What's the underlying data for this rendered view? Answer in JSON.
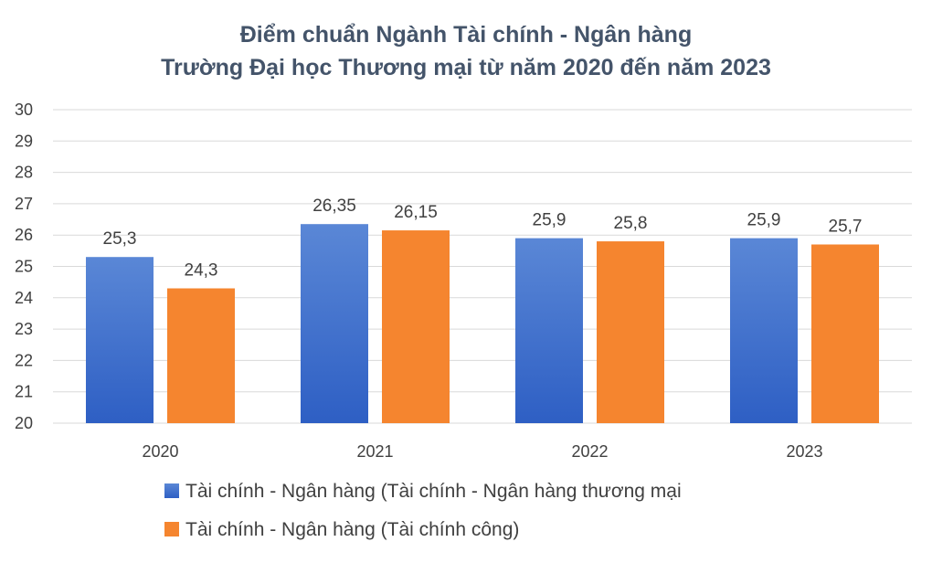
{
  "chart_data": {
    "type": "bar",
    "title_lines": [
      "Điểm chuẩn Ngành Tài chính - Ngân hàng",
      "Trường Đại học Thương mại từ năm 2020 đến năm 2023"
    ],
    "categories": [
      "2020",
      "2021",
      "2022",
      "2023"
    ],
    "series": [
      {
        "name": "Tài chính - Ngân hàng (Tài chính - Ngân hàng thương mại",
        "values": [
          25.3,
          26.35,
          25.9,
          25.9
        ],
        "labels": [
          "25,3",
          "26,35",
          "25,9",
          "25,9"
        ],
        "color_top": "#5a87d6",
        "color_bottom": "#2e5fc4"
      },
      {
        "name": "Tài chính - Ngân hàng (Tài chính công)",
        "values": [
          24.3,
          26.15,
          25.8,
          25.7
        ],
        "labels": [
          "24,3",
          "26,15",
          "25,8",
          "25,7"
        ],
        "color_top": "#f5852f",
        "color_bottom": "#f5852f"
      }
    ],
    "ylim": [
      20,
      30
    ],
    "yticks": [
      "20",
      "21",
      "22",
      "23",
      "24",
      "25",
      "26",
      "27",
      "28",
      "29",
      "30"
    ],
    "grid": true,
    "legend_position": "bottom-left"
  }
}
